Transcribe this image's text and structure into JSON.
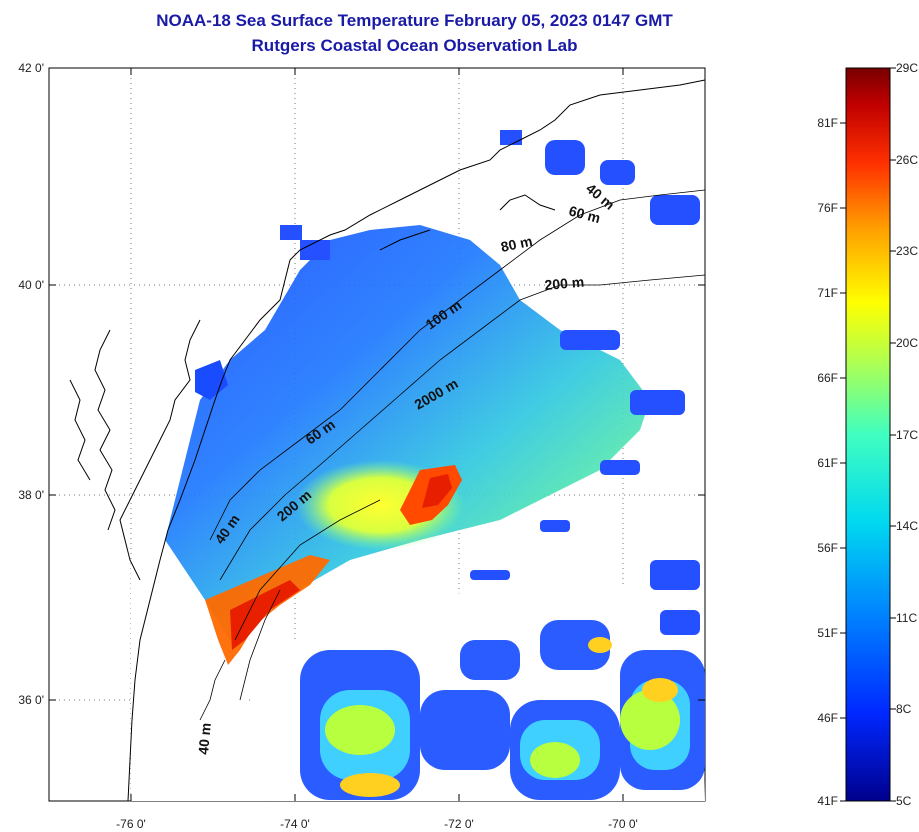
{
  "header": {
    "title": "NOAA-18 Sea Surface Temperature February 05, 2023 0147 GMT",
    "subtitle": "Rutgers Coastal Ocean Observation Lab"
  },
  "map": {
    "lat_labels": [
      "42 0'",
      "40 0'",
      "38 0'",
      "36 0'"
    ],
    "lon_labels": [
      "-76 0'",
      "-74 0'",
      "-72 0'",
      "-70 0'"
    ],
    "contour_labels": [
      "40 m",
      "60 m",
      "80 m",
      "200 m",
      "100 m",
      "2000 m",
      "60 m",
      "40 m",
      "200 m",
      "40 m"
    ]
  },
  "colorbar": {
    "fahrenheit": [
      "81F",
      "76F",
      "71F",
      "66F",
      "61F",
      "56F",
      "51F",
      "46F",
      "41F"
    ],
    "celsius": [
      "29C",
      "26C",
      "23C",
      "20C",
      "17C",
      "14C",
      "11C",
      "8C",
      "5C"
    ],
    "colors": [
      "#7a0000",
      "#d40000",
      "#ff5a00",
      "#ffb000",
      "#ffff00",
      "#7fff7f",
      "#00e0e0",
      "#0090ff",
      "#0030ff",
      "#00008c"
    ]
  }
}
